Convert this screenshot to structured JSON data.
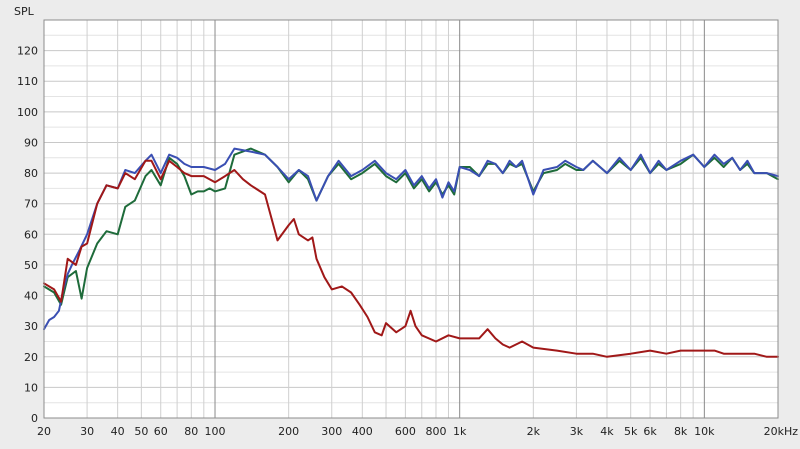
{
  "chart_data": {
    "type": "line",
    "ylabel": "SPL",
    "x_scale": "log",
    "xlim": [
      20,
      20000
    ],
    "ylim": [
      0,
      130
    ],
    "grid": true,
    "y_ticks": [
      0,
      10,
      20,
      30,
      40,
      50,
      60,
      70,
      80,
      90,
      100,
      110,
      120
    ],
    "x_ticks": [
      {
        "value": 20,
        "label": "20"
      },
      {
        "value": 30,
        "label": "30"
      },
      {
        "value": 40,
        "label": "40"
      },
      {
        "value": 50,
        "label": "50"
      },
      {
        "value": 60,
        "label": "60"
      },
      {
        "value": 80,
        "label": "80"
      },
      {
        "value": 100,
        "label": "100"
      },
      {
        "value": 200,
        "label": "200"
      },
      {
        "value": 300,
        "label": "300"
      },
      {
        "value": 400,
        "label": "400"
      },
      {
        "value": 600,
        "label": "600"
      },
      {
        "value": 800,
        "label": "800"
      },
      {
        "value": 1000,
        "label": "1k"
      },
      {
        "value": 2000,
        "label": "2k"
      },
      {
        "value": 3000,
        "label": "3k"
      },
      {
        "value": 4000,
        "label": "4k"
      },
      {
        "value": 5000,
        "label": "5k"
      },
      {
        "value": 6000,
        "label": "6k"
      },
      {
        "value": 8000,
        "label": "8k"
      },
      {
        "value": 10000,
        "label": "10k"
      },
      {
        "value": 20000,
        "label": "20kHz"
      }
    ],
    "series": [
      {
        "color": "#1e6b3a",
        "points": [
          [
            20,
            43
          ],
          [
            22,
            41
          ],
          [
            23.5,
            37
          ],
          [
            25,
            46
          ],
          [
            27,
            48
          ],
          [
            28.5,
            39
          ],
          [
            30,
            49
          ],
          [
            33,
            57
          ],
          [
            36,
            61
          ],
          [
            40,
            60
          ],
          [
            43,
            69
          ],
          [
            47,
            71
          ],
          [
            52,
            79
          ],
          [
            55,
            81
          ],
          [
            60,
            76
          ],
          [
            65,
            85
          ],
          [
            70,
            83
          ],
          [
            75,
            79
          ],
          [
            80,
            73
          ],
          [
            85,
            74
          ],
          [
            90,
            74
          ],
          [
            95,
            75
          ],
          [
            100,
            74
          ],
          [
            110,
            75
          ],
          [
            120,
            86
          ],
          [
            140,
            88
          ],
          [
            160,
            86
          ],
          [
            180,
            82
          ],
          [
            200,
            77
          ],
          [
            220,
            81
          ],
          [
            240,
            78
          ],
          [
            260,
            71
          ],
          [
            290,
            79
          ],
          [
            320,
            83
          ],
          [
            360,
            78
          ],
          [
            400,
            80
          ],
          [
            450,
            83
          ],
          [
            500,
            79
          ],
          [
            550,
            77
          ],
          [
            600,
            80
          ],
          [
            650,
            75
          ],
          [
            700,
            78
          ],
          [
            750,
            74
          ],
          [
            800,
            77
          ],
          [
            850,
            73
          ],
          [
            900,
            76
          ],
          [
            950,
            73
          ],
          [
            1000,
            82
          ],
          [
            1100,
            82
          ],
          [
            1200,
            79
          ],
          [
            1300,
            83
          ],
          [
            1400,
            83
          ],
          [
            1500,
            80
          ],
          [
            1600,
            83
          ],
          [
            1700,
            82
          ],
          [
            1800,
            83
          ],
          [
            2000,
            74
          ],
          [
            2200,
            80
          ],
          [
            2500,
            81
          ],
          [
            2700,
            83
          ],
          [
            3000,
            81
          ],
          [
            3200,
            81
          ],
          [
            3500,
            84
          ],
          [
            4000,
            80
          ],
          [
            4500,
            84
          ],
          [
            5000,
            81
          ],
          [
            5500,
            85
          ],
          [
            6000,
            80
          ],
          [
            6500,
            83
          ],
          [
            7000,
            81
          ],
          [
            8000,
            83
          ],
          [
            9000,
            86
          ],
          [
            10000,
            82
          ],
          [
            11000,
            85
          ],
          [
            12000,
            82
          ],
          [
            13000,
            85
          ],
          [
            14000,
            81
          ],
          [
            15000,
            83
          ],
          [
            16000,
            80
          ],
          [
            18000,
            80
          ],
          [
            20000,
            78
          ]
        ]
      },
      {
        "color": "#3a4fb3",
        "points": [
          [
            20,
            29
          ],
          [
            21,
            32
          ],
          [
            22,
            33
          ],
          [
            23,
            35
          ],
          [
            24,
            42
          ],
          [
            25,
            47
          ],
          [
            26,
            50
          ],
          [
            28,
            55
          ],
          [
            30,
            60
          ],
          [
            33,
            70
          ],
          [
            36,
            76
          ],
          [
            40,
            75
          ],
          [
            43,
            81
          ],
          [
            47,
            80
          ],
          [
            52,
            84
          ],
          [
            55,
            86
          ],
          [
            60,
            80
          ],
          [
            65,
            86
          ],
          [
            70,
            85
          ],
          [
            75,
            83
          ],
          [
            80,
            82
          ],
          [
            90,
            82
          ],
          [
            100,
            81
          ],
          [
            110,
            83
          ],
          [
            120,
            88
          ],
          [
            140,
            87
          ],
          [
            160,
            86
          ],
          [
            180,
            82
          ],
          [
            200,
            78
          ],
          [
            220,
            81
          ],
          [
            240,
            79
          ],
          [
            260,
            71
          ],
          [
            290,
            79
          ],
          [
            320,
            84
          ],
          [
            360,
            79
          ],
          [
            400,
            81
          ],
          [
            450,
            84
          ],
          [
            500,
            80
          ],
          [
            550,
            78
          ],
          [
            600,
            81
          ],
          [
            650,
            76
          ],
          [
            700,
            79
          ],
          [
            750,
            75
          ],
          [
            800,
            78
          ],
          [
            850,
            72
          ],
          [
            900,
            77
          ],
          [
            950,
            74
          ],
          [
            1000,
            82
          ],
          [
            1100,
            81
          ],
          [
            1200,
            79
          ],
          [
            1300,
            84
          ],
          [
            1400,
            83
          ],
          [
            1500,
            80
          ],
          [
            1600,
            84
          ],
          [
            1700,
            82
          ],
          [
            1800,
            84
          ],
          [
            2000,
            73
          ],
          [
            2200,
            81
          ],
          [
            2500,
            82
          ],
          [
            2700,
            84
          ],
          [
            3000,
            82
          ],
          [
            3200,
            81
          ],
          [
            3500,
            84
          ],
          [
            4000,
            80
          ],
          [
            4500,
            85
          ],
          [
            5000,
            81
          ],
          [
            5500,
            86
          ],
          [
            6000,
            80
          ],
          [
            6500,
            84
          ],
          [
            7000,
            81
          ],
          [
            8000,
            84
          ],
          [
            9000,
            86
          ],
          [
            10000,
            82
          ],
          [
            11000,
            86
          ],
          [
            12000,
            83
          ],
          [
            13000,
            85
          ],
          [
            14000,
            81
          ],
          [
            15000,
            84
          ],
          [
            16000,
            80
          ],
          [
            18000,
            80
          ],
          [
            20000,
            79
          ]
        ]
      },
      {
        "color": "#a01818",
        "points": [
          [
            20,
            44
          ],
          [
            22,
            42
          ],
          [
            23.5,
            38
          ],
          [
            25,
            52
          ],
          [
            27,
            50
          ],
          [
            28.5,
            56
          ],
          [
            30,
            57
          ],
          [
            33,
            70
          ],
          [
            36,
            76
          ],
          [
            40,
            75
          ],
          [
            43,
            80
          ],
          [
            47,
            78
          ],
          [
            52,
            84
          ],
          [
            55,
            84
          ],
          [
            60,
            78
          ],
          [
            65,
            84
          ],
          [
            70,
            82
          ],
          [
            75,
            80
          ],
          [
            80,
            79
          ],
          [
            90,
            79
          ],
          [
            100,
            77
          ],
          [
            110,
            79
          ],
          [
            120,
            81
          ],
          [
            130,
            78
          ],
          [
            140,
            76
          ],
          [
            160,
            73
          ],
          [
            180,
            58
          ],
          [
            200,
            63
          ],
          [
            210,
            65
          ],
          [
            220,
            60
          ],
          [
            240,
            58
          ],
          [
            250,
            59
          ],
          [
            260,
            52
          ],
          [
            280,
            46
          ],
          [
            300,
            42
          ],
          [
            330,
            43
          ],
          [
            360,
            41
          ],
          [
            390,
            37
          ],
          [
            420,
            33
          ],
          [
            450,
            28
          ],
          [
            480,
            27
          ],
          [
            500,
            31
          ],
          [
            550,
            28
          ],
          [
            600,
            30
          ],
          [
            630,
            35
          ],
          [
            660,
            30
          ],
          [
            700,
            27
          ],
          [
            800,
            25
          ],
          [
            900,
            27
          ],
          [
            1000,
            26
          ],
          [
            1200,
            26
          ],
          [
            1300,
            29
          ],
          [
            1400,
            26
          ],
          [
            1500,
            24
          ],
          [
            1600,
            23
          ],
          [
            1800,
            25
          ],
          [
            2000,
            23
          ],
          [
            2500,
            22
          ],
          [
            3000,
            21
          ],
          [
            3500,
            21
          ],
          [
            4000,
            20
          ],
          [
            5000,
            21
          ],
          [
            6000,
            22
          ],
          [
            7000,
            21
          ],
          [
            8000,
            22
          ],
          [
            10000,
            22
          ],
          [
            11000,
            22
          ],
          [
            12000,
            21
          ],
          [
            14000,
            21
          ],
          [
            16000,
            21
          ],
          [
            18000,
            20
          ],
          [
            20000,
            20
          ]
        ]
      }
    ]
  }
}
